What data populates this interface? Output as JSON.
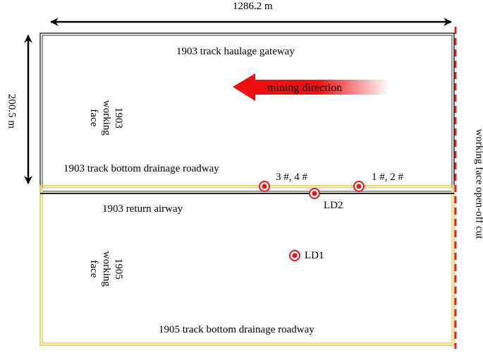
{
  "dimensions": {
    "width_label": "1286.2 m",
    "height_label": "200.5 m"
  },
  "labels": {
    "haulage_gateway": "1903 track haulage gateway",
    "mining_direction": "mining direction",
    "bottom_drainage_1903": "1903 track bottom drainage roadway",
    "return_airway": "1903 return airway",
    "bottom_drainage_1905": "1905 track bottom drainage roadway",
    "open_off_cut": "working face open-off cut",
    "face_1903": [
      "1903",
      "working",
      "face"
    ],
    "face_1905": [
      "1905",
      "working",
      "face"
    ]
  },
  "stations": {
    "s34": "3 #, 4 #",
    "s12": "1 #, 2 #",
    "ld2": "LD2",
    "ld1": "LD1"
  },
  "colors": {
    "marker_red": "#e8141c",
    "arrow_red": "#ee1111",
    "yellow": "#e8c23a",
    "cut_red": "#e31e24"
  }
}
